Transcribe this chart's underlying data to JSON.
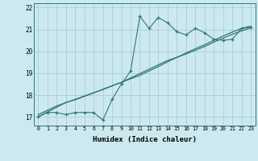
{
  "xlabel": "Humidex (Indice chaleur)",
  "x": [
    0,
    1,
    2,
    3,
    4,
    5,
    6,
    7,
    8,
    9,
    10,
    11,
    12,
    13,
    14,
    15,
    16,
    17,
    18,
    19,
    20,
    21,
    22,
    23
  ],
  "y_data": [
    17.0,
    17.2,
    17.2,
    17.1,
    17.2,
    17.2,
    17.2,
    16.85,
    17.8,
    18.5,
    19.1,
    21.6,
    21.05,
    21.55,
    21.3,
    20.9,
    20.75,
    21.05,
    20.85,
    20.55,
    20.5,
    20.55,
    21.05,
    21.1
  ],
  "y_line1": [
    17.0,
    17.22,
    17.44,
    17.66,
    17.78,
    17.94,
    18.1,
    18.26,
    18.42,
    18.58,
    18.74,
    18.9,
    19.1,
    19.3,
    19.52,
    19.72,
    19.92,
    20.12,
    20.3,
    20.5,
    20.7,
    20.88,
    21.05,
    21.15
  ],
  "y_line2": [
    17.1,
    17.3,
    17.5,
    17.65,
    17.8,
    17.95,
    18.1,
    18.25,
    18.42,
    18.58,
    18.78,
    18.98,
    19.18,
    19.38,
    19.58,
    19.72,
    19.88,
    20.05,
    20.22,
    20.42,
    20.6,
    20.78,
    20.93,
    21.08
  ],
  "line_color": "#2d7a6e",
  "bg_color": "#cde9f0",
  "grid_color": "#aacdd6",
  "ylim": [
    16.6,
    22.2
  ],
  "xlim": [
    -0.5,
    23.5
  ],
  "yticks": [
    17,
    18,
    19,
    20,
    21,
    22
  ],
  "xticks": [
    0,
    1,
    2,
    3,
    4,
    5,
    6,
    7,
    8,
    9,
    10,
    11,
    12,
    13,
    14,
    15,
    16,
    17,
    18,
    19,
    20,
    21,
    22,
    23
  ]
}
